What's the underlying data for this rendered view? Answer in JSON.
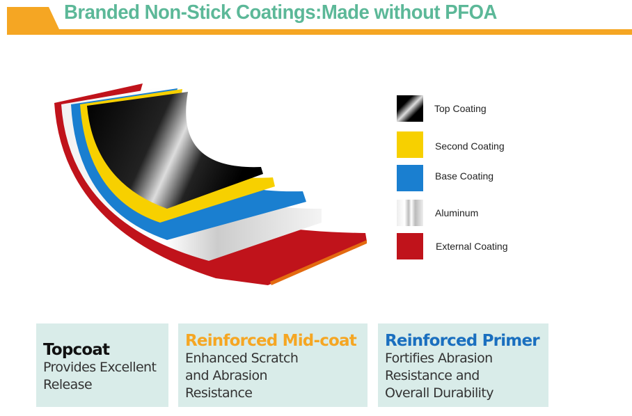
{
  "header": {
    "title": "Branded Non-Stick Coatings:Made without PFOA",
    "accent": "#f5a623",
    "title_color": "#5cb898"
  },
  "legend": [
    {
      "label": "Top Coating",
      "color": "#111111"
    },
    {
      "label": "Second Coating",
      "color": "#f7d000"
    },
    {
      "label": "Base Coating",
      "color": "#1a7fd0"
    },
    {
      "label": "Aluminum",
      "color": "#e8e8e8"
    },
    {
      "label": "External Coating",
      "color": "#c0131b"
    }
  ],
  "cards": [
    {
      "title": "Topcoat",
      "title_color": "#111111",
      "text": "Provides Excellent\nRelease"
    },
    {
      "title": "Reinforced Mid-coat",
      "title_color": "#f5a623",
      "text": "Enhanced Scratch\nand Abrasion\nResistance"
    },
    {
      "title": "Reinforced Primer",
      "title_color": "#1a6fbf",
      "text": "Fortifies Abrasion\nResistance and\nOverall Durability"
    }
  ]
}
